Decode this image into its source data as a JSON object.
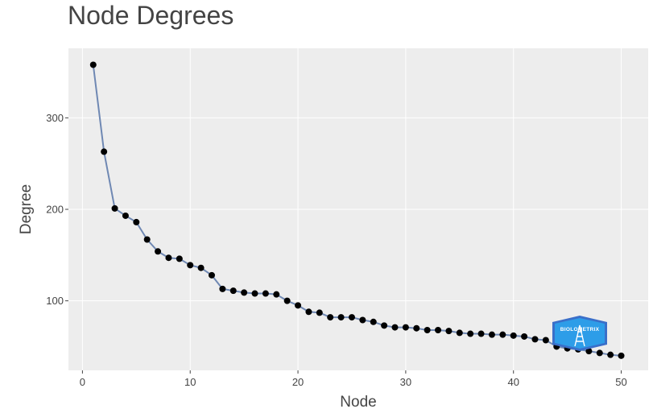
{
  "chart_data": {
    "type": "line",
    "title": "Node Degrees",
    "xlabel": "Node",
    "ylabel": "Degree",
    "xlim": [
      -1.3,
      52.5
    ],
    "ylim": [
      24,
      376
    ],
    "x_ticks": [
      0,
      10,
      20,
      30,
      40,
      50
    ],
    "y_ticks": [
      100,
      200,
      300
    ],
    "x_tick_labels": [
      "0",
      "10",
      "20",
      "30",
      "40",
      "50"
    ],
    "y_tick_labels": [
      "100",
      "200",
      "300"
    ],
    "grid": true,
    "legend": "none",
    "series": [
      {
        "x": [
          1,
          2,
          3,
          4,
          5,
          6,
          7,
          8,
          9,
          10,
          11,
          12,
          13,
          14,
          15,
          16,
          17,
          18,
          19,
          20,
          21,
          22,
          23,
          24,
          25,
          26,
          27,
          28,
          29,
          30,
          31,
          32,
          33,
          34,
          35,
          36,
          37,
          38,
          39,
          40,
          41,
          42,
          43,
          44,
          45,
          46,
          47,
          48,
          49,
          50
        ],
        "values": [
          358,
          263,
          201,
          193,
          186,
          167,
          154,
          147,
          146,
          139,
          136,
          128,
          113,
          111,
          109,
          108,
          108,
          107,
          100,
          95,
          88,
          87,
          82,
          82,
          82,
          79,
          77,
          73,
          71,
          71,
          70,
          68,
          68,
          67,
          65,
          64,
          64,
          63,
          63,
          62,
          61,
          58,
          57,
          50,
          48,
          47,
          45,
          43,
          41,
          40
        ]
      }
    ],
    "colors": {
      "line": "#6f88b3",
      "marker": "#000000",
      "plot_background": "#ededed",
      "grid": "#ffffff",
      "logo_fill": "#2d9de8",
      "logo_stroke": "#3a6fc9"
    },
    "logo": {
      "text": "BIOLOMETRIX"
    }
  }
}
